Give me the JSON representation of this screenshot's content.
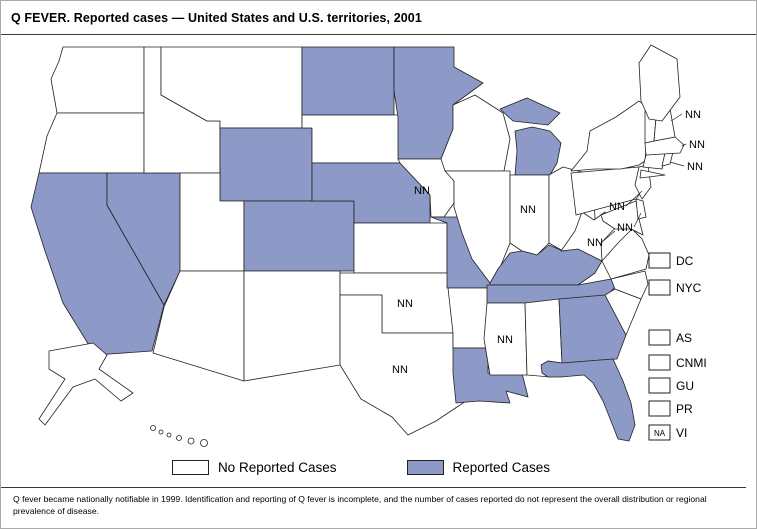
{
  "title": "Q FEVER. Reported cases — United States and U.S. territories, 2001",
  "footnote": "Q fever became nationally notifiable in 1999. Identification and reporting of Q fever is incomplete, and the number of cases reported do not represent the overall distribution or regional prevalence of disease.",
  "colors": {
    "reported": "#8d99c7",
    "not_reported": "#ffffff",
    "stroke": "#222222"
  },
  "legend": {
    "no_cases_label": "No Reported Cases",
    "cases_label": "Reported Cases"
  },
  "nn_text": "NN",
  "na_text": "NA",
  "jurisdiction_boxes": [
    {
      "code": "DC",
      "status": "none"
    },
    {
      "code": "NYC",
      "status": "none"
    }
  ],
  "territory_boxes": [
    {
      "code": "AS",
      "status": "none"
    },
    {
      "code": "CNMI",
      "status": "none"
    },
    {
      "code": "GU",
      "status": "none"
    },
    {
      "code": "PR",
      "status": "none"
    },
    {
      "code": "VI",
      "status": "na"
    }
  ],
  "states": [
    {
      "id": "WA",
      "name": "Washington",
      "status": "none"
    },
    {
      "id": "OR",
      "name": "Oregon",
      "status": "none"
    },
    {
      "id": "CA",
      "name": "California",
      "status": "reported"
    },
    {
      "id": "NV",
      "name": "Nevada",
      "status": "reported"
    },
    {
      "id": "ID",
      "name": "Idaho",
      "status": "none"
    },
    {
      "id": "MT",
      "name": "Montana",
      "status": "none"
    },
    {
      "id": "WY",
      "name": "Wyoming",
      "status": "reported"
    },
    {
      "id": "UT",
      "name": "Utah",
      "status": "none"
    },
    {
      "id": "AZ",
      "name": "Arizona",
      "status": "none"
    },
    {
      "id": "CO",
      "name": "Colorado",
      "status": "reported"
    },
    {
      "id": "NM",
      "name": "New Mexico",
      "status": "none"
    },
    {
      "id": "ND",
      "name": "North Dakota",
      "status": "reported"
    },
    {
      "id": "SD",
      "name": "South Dakota",
      "status": "none"
    },
    {
      "id": "NE",
      "name": "Nebraska",
      "status": "reported"
    },
    {
      "id": "KS",
      "name": "Kansas",
      "status": "none"
    },
    {
      "id": "OK",
      "name": "Oklahoma",
      "status": "nn"
    },
    {
      "id": "TX",
      "name": "Texas",
      "status": "nn"
    },
    {
      "id": "MN",
      "name": "Minnesota",
      "status": "reported"
    },
    {
      "id": "IA",
      "name": "Iowa",
      "status": "nn"
    },
    {
      "id": "MO",
      "name": "Missouri",
      "status": "reported"
    },
    {
      "id": "AR",
      "name": "Arkansas",
      "status": "none"
    },
    {
      "id": "LA",
      "name": "Louisiana",
      "status": "reported"
    },
    {
      "id": "WI",
      "name": "Wisconsin",
      "status": "none"
    },
    {
      "id": "IL",
      "name": "Illinois",
      "status": "none"
    },
    {
      "id": "MI",
      "name": "Michigan",
      "status": "reported"
    },
    {
      "id": "IN",
      "name": "Indiana",
      "status": "nn"
    },
    {
      "id": "OH",
      "name": "Ohio",
      "status": "none"
    },
    {
      "id": "KY",
      "name": "Kentucky",
      "status": "reported"
    },
    {
      "id": "TN",
      "name": "Tennessee",
      "status": "reported"
    },
    {
      "id": "MS",
      "name": "Mississippi",
      "status": "nn"
    },
    {
      "id": "AL",
      "name": "Alabama",
      "status": "none"
    },
    {
      "id": "GA",
      "name": "Georgia",
      "status": "reported"
    },
    {
      "id": "FL",
      "name": "Florida",
      "status": "reported"
    },
    {
      "id": "SC",
      "name": "South Carolina",
      "status": "none"
    },
    {
      "id": "NC",
      "name": "North Carolina",
      "status": "none"
    },
    {
      "id": "VA",
      "name": "Virginia",
      "status": "none"
    },
    {
      "id": "WV",
      "name": "West Virginia",
      "status": "none"
    },
    {
      "id": "MD",
      "name": "Maryland",
      "status": "nn"
    },
    {
      "id": "DE",
      "name": "Delaware",
      "status": "nn"
    },
    {
      "id": "PA",
      "name": "Pennsylvania",
      "status": "none"
    },
    {
      "id": "NJ",
      "name": "New Jersey",
      "status": "nn"
    },
    {
      "id": "NY",
      "name": "New York",
      "status": "none"
    },
    {
      "id": "CT",
      "name": "Connecticut",
      "status": "none"
    },
    {
      "id": "RI",
      "name": "Rhode Island",
      "status": "nn"
    },
    {
      "id": "MA",
      "name": "Massachusetts",
      "status": "nn"
    },
    {
      "id": "VT",
      "name": "Vermont",
      "status": "none"
    },
    {
      "id": "NH",
      "name": "New Hampshire",
      "status": "nn"
    },
    {
      "id": "ME",
      "name": "Maine",
      "status": "none"
    },
    {
      "id": "AK",
      "name": "Alaska",
      "status": "none"
    },
    {
      "id": "HI",
      "name": "Hawaii",
      "status": "none"
    }
  ]
}
